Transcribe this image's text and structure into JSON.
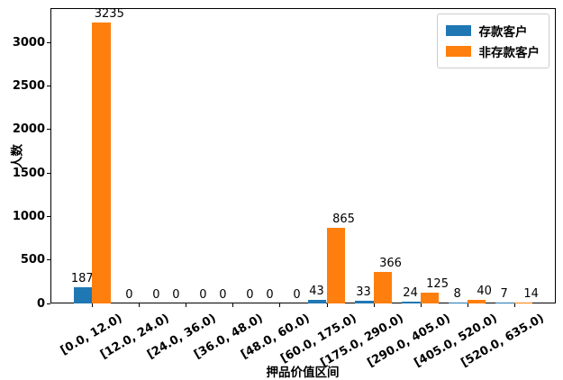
{
  "chart_data": {
    "type": "bar",
    "title": "",
    "xlabel": "押品价值区间",
    "ylabel": "人数",
    "categories": [
      "[0.0, 12.0)",
      "[12.0, 24.0)",
      "[24.0, 36.0)",
      "[36.0, 48.0)",
      "[48.0, 60.0)",
      "[60.0, 175.0)",
      "[175.0, 290.0)",
      "[290.0, 405.0)",
      "[405.0, 520.0)",
      "[520.0, 635.0)"
    ],
    "series": [
      {
        "name": "存款客户",
        "color": "#1f77b4",
        "values": [
          187,
          0,
          0,
          0,
          0,
          43,
          33,
          24,
          8,
          7
        ]
      },
      {
        "name": "非存款客户",
        "color": "#ff7f0e",
        "values": [
          3235,
          0,
          0,
          0,
          0,
          865,
          366,
          125,
          40,
          14
        ]
      }
    ],
    "yticks": [
      0,
      500,
      1000,
      1500,
      2000,
      2500,
      3000
    ],
    "ylim": [
      0,
      3397
    ],
    "bar_value_labels": true,
    "legend_position": "upper right",
    "grid": false,
    "xtick_rotation": 30,
    "colors": {
      "spine": "#000000",
      "background": "#ffffff",
      "legend_border": "#cccccc"
    }
  }
}
